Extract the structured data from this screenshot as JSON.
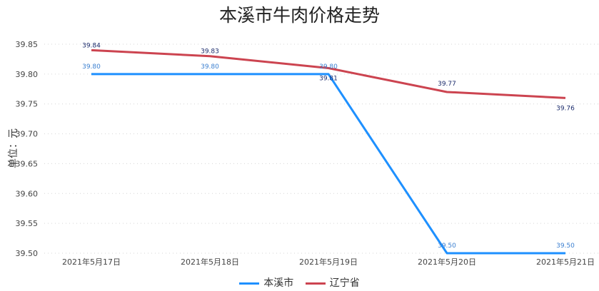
{
  "chart_data": {
    "type": "line",
    "title": "本溪市牛肉价格走势",
    "ylabel": "单位：元",
    "xlabel": "",
    "categories": [
      "2021年5月17日",
      "2021年5月18日",
      "2021年5月19日",
      "2021年5月20日",
      "2021年5月21日"
    ],
    "ylim": [
      39.5,
      39.85
    ],
    "yticks": [
      "39.50",
      "39.55",
      "39.60",
      "39.65",
      "39.70",
      "39.75",
      "39.80",
      "39.85"
    ],
    "grid": true,
    "legend_position": "bottom",
    "series": [
      {
        "name": "本溪市",
        "color": "#1e90ff",
        "values": [
          39.8,
          39.8,
          39.8,
          39.5,
          39.5
        ],
        "labels": [
          "39.80",
          "39.80",
          "39.80",
          "39.50",
          "39.50"
        ],
        "label_color": "#3a7fd0"
      },
      {
        "name": "辽宁省",
        "color": "#cc4450",
        "values": [
          39.84,
          39.83,
          39.81,
          39.77,
          39.76
        ],
        "labels": [
          "39.84",
          "39.83",
          "39.81",
          "39.77",
          "39.76"
        ],
        "label_color": "#1a2a6b"
      }
    ]
  }
}
